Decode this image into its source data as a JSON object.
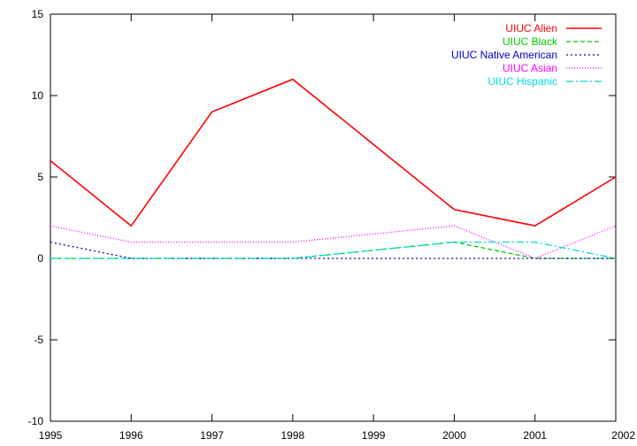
{
  "chart_data": {
    "type": "line",
    "title": "",
    "xlabel": "",
    "ylabel": "",
    "x": [
      1995,
      1996,
      1997,
      1998,
      1999,
      2000,
      2001,
      2002
    ],
    "xlim": [
      1995,
      2002
    ],
    "ylim": [
      -10,
      15
    ],
    "x_ticks": [
      1995,
      1996,
      1997,
      1998,
      1999,
      2000,
      2001,
      2002
    ],
    "y_ticks": [
      -10,
      -5,
      0,
      5,
      10,
      15
    ],
    "grid": false,
    "legend_position": "top-right",
    "series": [
      {
        "name": "UIUC Alien",
        "values": [
          6,
          2,
          9,
          11,
          7,
          3,
          2,
          5
        ],
        "color": "#ff0000",
        "dash": "solid"
      },
      {
        "name": "UIUC Black",
        "values": [
          0,
          0,
          0,
          0,
          0.5,
          1,
          0,
          0
        ],
        "color": "#00cc00",
        "dash": "dashed"
      },
      {
        "name": "UIUC Native American",
        "values": [
          1,
          0,
          0,
          0,
          0,
          0,
          0,
          0
        ],
        "color": "#0000cc",
        "dash": "dotted"
      },
      {
        "name": "UIUC Asian",
        "values": [
          2,
          1,
          1,
          1,
          1.5,
          2,
          0,
          2
        ],
        "color": "#ff00ff",
        "dash": "dotted-fine"
      },
      {
        "name": "UIUC Hispanic",
        "values": [
          0,
          0,
          0,
          0,
          0.5,
          1,
          1,
          0
        ],
        "color": "#00dddd",
        "dash": "dashdot"
      }
    ]
  }
}
